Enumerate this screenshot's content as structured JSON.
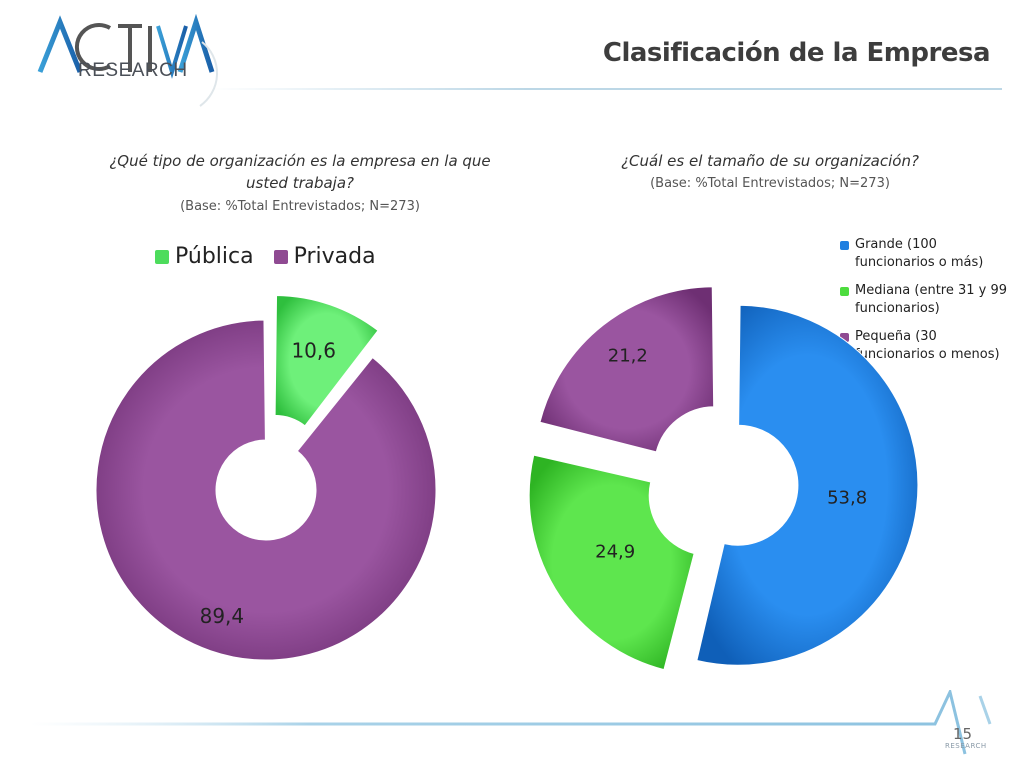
{
  "header": {
    "logo_text": "RESEARCH",
    "title": "Clasificación de la Empresa"
  },
  "colors": {
    "publica": "#4ddc5c",
    "privada": "#8f4a92",
    "grande": "#1f7fe0",
    "mediana": "#4ddc3e",
    "pequena": "#8f4a92"
  },
  "footer": {
    "page_number": "15",
    "logo_text": "RESEARCH"
  },
  "chart_data": [
    {
      "type": "pie",
      "title": "¿Qué tipo de organización es la empresa en la que usted trabaja?",
      "subtitle": "(Base: %Total Entrevistados; N=273)",
      "legend_position": "top-left",
      "categories": [
        "Pública",
        "Privada"
      ],
      "values": [
        10.6,
        89.4
      ],
      "labels": [
        "10,6",
        "89,4"
      ]
    },
    {
      "type": "pie",
      "title": "¿Cuál es el tamaño de su organización?",
      "subtitle": "(Base: %Total Entrevistados; N=273)",
      "legend_position": "right",
      "categories": [
        "Grande (100 funcionarios o más)",
        "Mediana (entre 31 y 99 funcionarios)",
        "Pequeña (30 funcionarios o menos)"
      ],
      "values": [
        53.8,
        24.9,
        21.2
      ],
      "labels": [
        "53,8",
        "24,9",
        "21,2"
      ]
    }
  ]
}
